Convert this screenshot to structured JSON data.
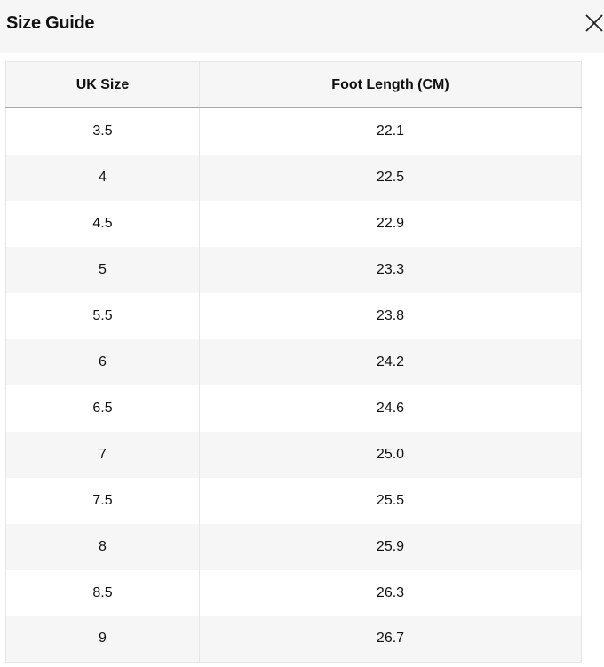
{
  "header": {
    "title": "Size Guide",
    "close_icon": "close-icon"
  },
  "table": {
    "columns": [
      "UK Size",
      "Foot Length (CM)"
    ],
    "rows": [
      [
        "3.5",
        "22.1"
      ],
      [
        "4",
        "22.5"
      ],
      [
        "4.5",
        "22.9"
      ],
      [
        "5",
        "23.3"
      ],
      [
        "5.5",
        "23.8"
      ],
      [
        "6",
        "24.2"
      ],
      [
        "6.5",
        "24.6"
      ],
      [
        "7",
        "25.0"
      ],
      [
        "7.5",
        "25.5"
      ],
      [
        "8",
        "25.9"
      ],
      [
        "8.5",
        "26.3"
      ],
      [
        "9",
        "26.7"
      ]
    ]
  }
}
